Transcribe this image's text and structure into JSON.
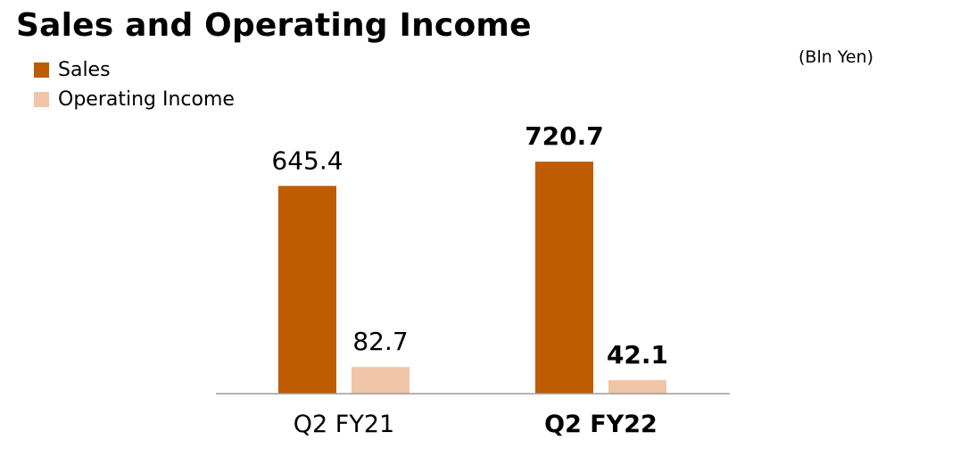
{
  "chart_data": {
    "type": "bar",
    "title": "Sales and Operating Income",
    "unit_label": "(Bln Yen)",
    "categories": [
      "Q2 FY21",
      "Q2 FY22"
    ],
    "category_bold": [
      false,
      true
    ],
    "series": [
      {
        "name": "Sales",
        "color": "#bf5b00",
        "values": [
          645.4,
          720.7
        ],
        "labels": [
          "645.4",
          "720.7"
        ]
      },
      {
        "name": "Operating Income",
        "color": "#f0c4a6",
        "values": [
          82.7,
          42.1
        ],
        "labels": [
          "82.7",
          "42.1"
        ]
      }
    ],
    "ylim": [
      0,
      800
    ],
    "grid": false,
    "legend_position": "top-left"
  }
}
